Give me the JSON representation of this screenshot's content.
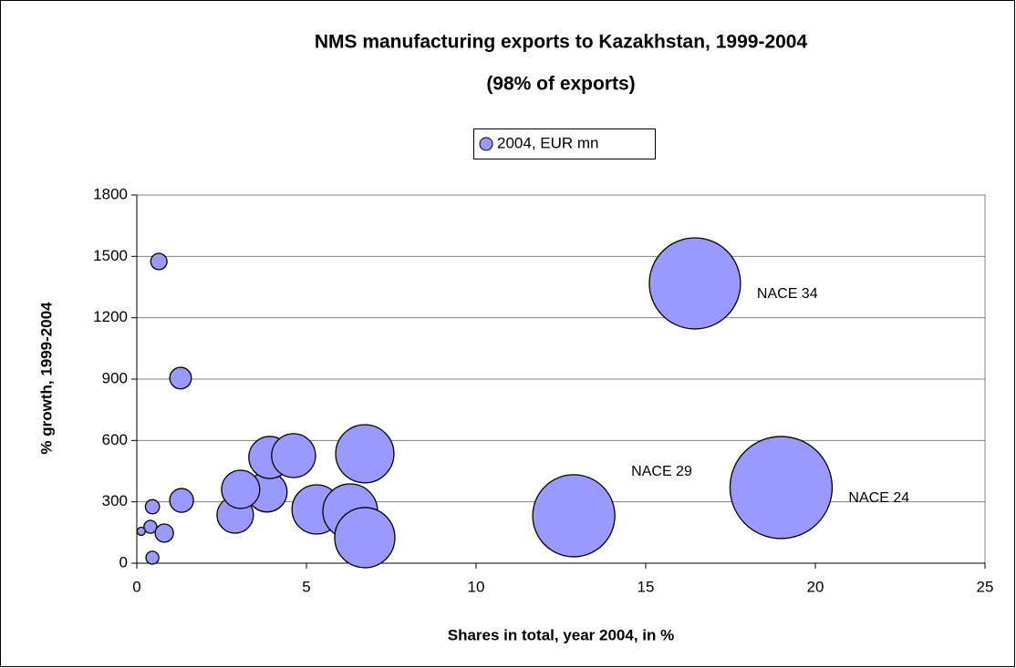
{
  "chart_data": {
    "type": "bubble",
    "title": "NMS manufacturing exports to Kazakhstan, 1999-2004",
    "subtitle": "(98% of exports)",
    "x_label": "Shares in total, year 2004, in %",
    "y_label": "% growth, 1999-2004",
    "legend": "top",
    "grid": true,
    "xlim": [
      0,
      25
    ],
    "xticks": [
      0,
      5,
      10,
      15,
      20,
      25
    ],
    "ylim": [
      0,
      1800
    ],
    "yticks": [
      0,
      300,
      600,
      900,
      1200,
      1500,
      1800
    ],
    "series": [
      {
        "name": "2004, EUR mn",
        "color": "#9999ff",
        "x": [
          0.65,
          1.29,
          1.32,
          0.46,
          0.4,
          0.13,
          0.81,
          0.46,
          2.9,
          3.84,
          3.06,
          3.92,
          4.62,
          5.3,
          6.29,
          6.72,
          6.72,
          12.88,
          16.45,
          18.99
        ],
        "values": [
          1475,
          905,
          307,
          276,
          178,
          156,
          147,
          27,
          236,
          348,
          361,
          517,
          526,
          263,
          254,
          125,
          535,
          232,
          1368,
          370
        ],
        "sizes": [
          8,
          14,
          17,
          6,
          5,
          2,
          10,
          5,
          40,
          48,
          44,
          53,
          58,
          73,
          90,
          109,
          102,
          203,
          250,
          314
        ],
        "point_labels": [
          null,
          null,
          null,
          null,
          null,
          null,
          null,
          null,
          null,
          null,
          null,
          null,
          null,
          null,
          null,
          null,
          null,
          "NACE 29",
          "NACE 34",
          "NACE 24"
        ]
      }
    ]
  }
}
